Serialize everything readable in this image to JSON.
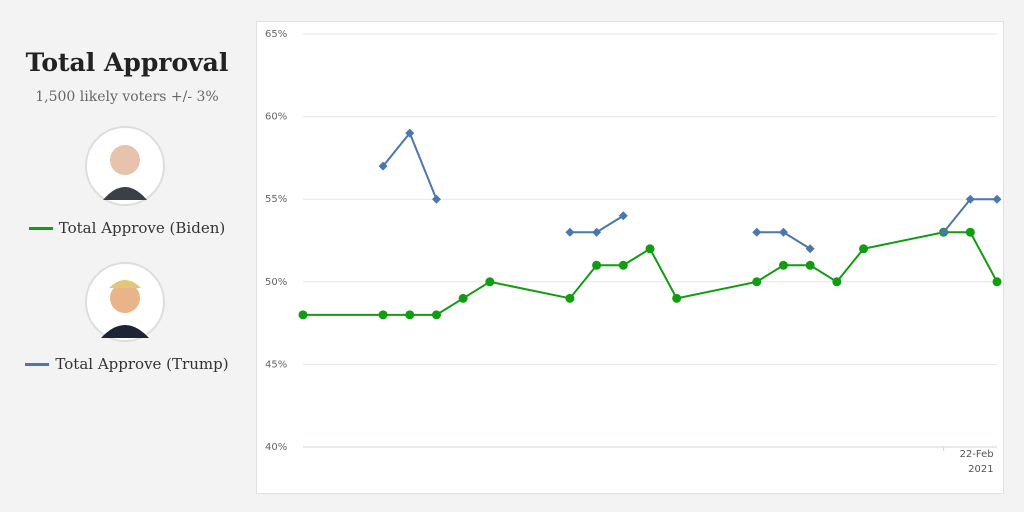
{
  "chart_data": {
    "type": "line",
    "title": "Total Approval",
    "subtitle": "1,500 likely voters +/- 3%",
    "categories": [
      null,
      null,
      null,
      null,
      null,
      null,
      null,
      null,
      null,
      null,
      null,
      null,
      null,
      null,
      null,
      null,
      null,
      null,
      null,
      null,
      null,
      null,
      null,
      null,
      "22-Feb 2021",
      null,
      null
    ],
    "series": [
      {
        "name": "Total Approve (Biden)",
        "color": "#119c11",
        "marker": "circle",
        "connect_gaps": true,
        "values": [
          48,
          null,
          null,
          48,
          48,
          48,
          49,
          50,
          null,
          null,
          49,
          51,
          51,
          52,
          49,
          null,
          null,
          50,
          51,
          51,
          50,
          52,
          null,
          null,
          53,
          53,
          50
        ]
      },
      {
        "name": "Total Approve (Trump)",
        "color": "#4a77ad",
        "marker": "diamond",
        "connect_gaps": false,
        "values": [
          null,
          null,
          null,
          57,
          59,
          55,
          null,
          null,
          null,
          null,
          53,
          53,
          54,
          null,
          null,
          null,
          null,
          53,
          53,
          52,
          null,
          null,
          null,
          null,
          53,
          55,
          55
        ]
      }
    ],
    "ylim": [
      40,
      65
    ],
    "yticks": [
      {
        "value": 40,
        "label": "40%"
      },
      {
        "value": 45,
        "label": "45%"
      },
      {
        "value": 50,
        "label": "50%"
      },
      {
        "value": 55,
        "label": "55%"
      },
      {
        "value": 60,
        "label": "60%"
      },
      {
        "value": 65,
        "label": "65%"
      }
    ],
    "grid": true
  }
}
